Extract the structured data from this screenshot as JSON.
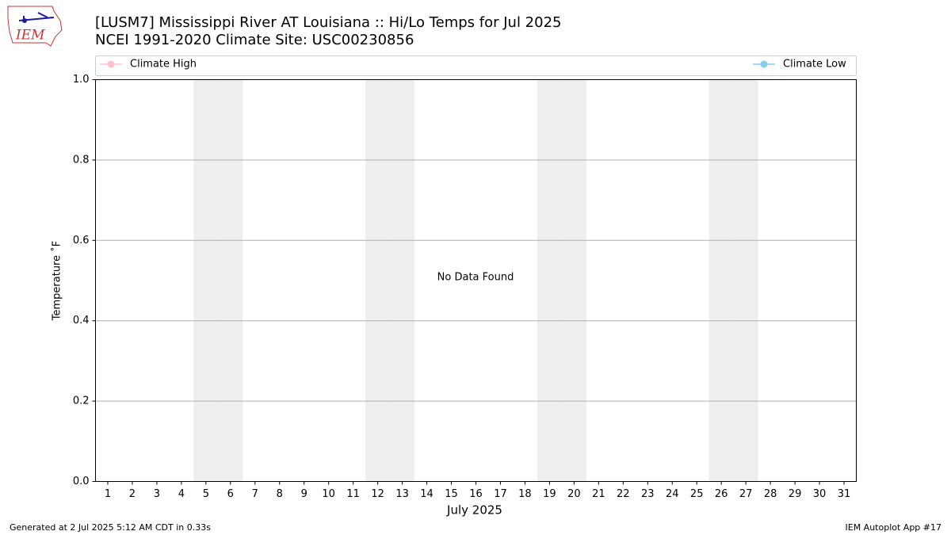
{
  "chart_data": {
    "type": "line",
    "title": "[LUSM7] Mississippi River  AT Louisiana :: Hi/Lo Temps for Jul 2025",
    "subtitle": "NCEI 1991-2020 Climate Site: USC00230856",
    "xlabel": "July 2025",
    "ylabel": "Temperature ˚F",
    "annotation": "No Data Found",
    "footer_left": "Generated at 2 Jul 2025 5:12 AM CDT in 0.33s",
    "footer_right": "IEM Autoplot App #17",
    "logo_text": "IEM",
    "x": [
      1,
      2,
      3,
      4,
      5,
      6,
      7,
      8,
      9,
      10,
      11,
      12,
      13,
      14,
      15,
      16,
      17,
      18,
      19,
      20,
      21,
      22,
      23,
      24,
      25,
      26,
      27,
      28,
      29,
      30,
      31
    ],
    "xlim": [
      0.5,
      31.5
    ],
    "xticks": [
      1,
      2,
      3,
      4,
      5,
      6,
      7,
      8,
      9,
      10,
      11,
      12,
      13,
      14,
      15,
      16,
      17,
      18,
      19,
      20,
      21,
      22,
      23,
      24,
      25,
      26,
      27,
      28,
      29,
      30,
      31
    ],
    "shaded_days": [
      5,
      6,
      12,
      13,
      19,
      20,
      26,
      27
    ],
    "ylim": [
      0,
      1
    ],
    "yticks": [
      {
        "value": 0,
        "label": "0.0"
      },
      {
        "value": 0.2,
        "label": "0.2"
      },
      {
        "value": 0.4,
        "label": "0.4"
      },
      {
        "value": 0.6,
        "label": "0.6"
      },
      {
        "value": 0.8,
        "label": "0.8"
      },
      {
        "value": 1,
        "label": "1.0"
      }
    ],
    "grid": true,
    "series": [
      {
        "name": "Climate High",
        "color": "#ffc0cb",
        "values": [
          null,
          null,
          null,
          null,
          null,
          null,
          null,
          null,
          null,
          null,
          null,
          null,
          null,
          null,
          null,
          null,
          null,
          null,
          null,
          null,
          null,
          null,
          null,
          null,
          null,
          null,
          null,
          null,
          null,
          null,
          null
        ]
      },
      {
        "name": "Climate Low",
        "color": "#87ceeb",
        "values": [
          null,
          null,
          null,
          null,
          null,
          null,
          null,
          null,
          null,
          null,
          null,
          null,
          null,
          null,
          null,
          null,
          null,
          null,
          null,
          null,
          null,
          null,
          null,
          null,
          null,
          null,
          null,
          null,
          null,
          null,
          null
        ]
      }
    ]
  }
}
